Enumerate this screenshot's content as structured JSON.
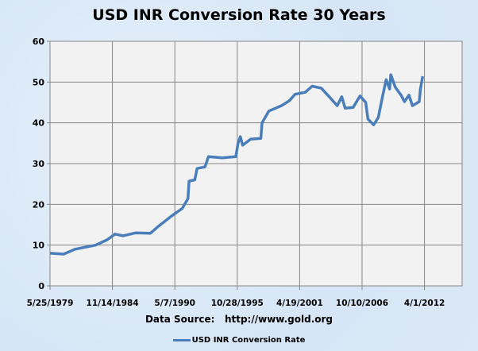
{
  "chart_data": {
    "type": "line",
    "title": "USD INR Conversion Rate 30 Years",
    "xlabel": "Data Source:   http://www.gold.org",
    "ylabel": "",
    "ylim": [
      0,
      60
    ],
    "yticks": [
      0,
      10,
      20,
      30,
      40,
      50,
      60
    ],
    "xlim": [
      1979.4,
      2015.56
    ],
    "xtick_start": 1979.4,
    "xtick_step": 5.476,
    "xtick_labels": [
      "5/25/1979",
      "11/14/1984",
      "5/7/1990",
      "10/28/1995",
      "4/19/2001",
      "10/10/2006",
      "4/1/2012"
    ],
    "grid": true,
    "legend": "bottom",
    "series": [
      {
        "name": "USD INR Conversion Rate",
        "color": "#4a7ebb",
        "x": [
          1979.4,
          1980.6,
          1981.6,
          1983.4,
          1984.4,
          1985.1,
          1985.8,
          1986.9,
          1988.2,
          1988.9,
          1990.0,
          1991.0,
          1991.5,
          1991.6,
          1992.1,
          1992.3,
          1993.0,
          1993.3,
          1994.5,
          1995.7,
          1995.9,
          1996.1,
          1996.3,
          1997.0,
          1997.9,
          1998.0,
          1998.6,
          1999.7,
          2000.4,
          2000.9,
          2001.8,
          2002.4,
          2003.2,
          2003.9,
          2004.6,
          2005.0,
          2005.3,
          2006.0,
          2006.6,
          2007.1,
          2007.3,
          2007.8,
          2008.2,
          2008.6,
          2008.9,
          2009.2,
          2009.3,
          2009.7,
          2010.2,
          2010.5,
          2010.9,
          2011.2,
          2011.8,
          2011.9,
          2012.1
        ],
        "values": [
          8,
          7.8,
          9,
          10,
          11.3,
          12.7,
          12.3,
          13,
          12.9,
          14.6,
          17,
          19,
          21.4,
          25.7,
          26,
          28.8,
          29.2,
          31.7,
          31.4,
          31.7,
          35,
          36.6,
          34.5,
          36,
          36.2,
          40,
          42.9,
          44.2,
          45.4,
          47,
          47.5,
          49,
          48.5,
          46.4,
          44.2,
          46.4,
          43.6,
          43.8,
          46.6,
          45,
          40.9,
          39.5,
          41.3,
          46.8,
          50.6,
          48.3,
          51.8,
          48.7,
          46.8,
          45.2,
          46.8,
          44.2,
          45.2,
          48.3,
          51.4
        ]
      }
    ]
  }
}
